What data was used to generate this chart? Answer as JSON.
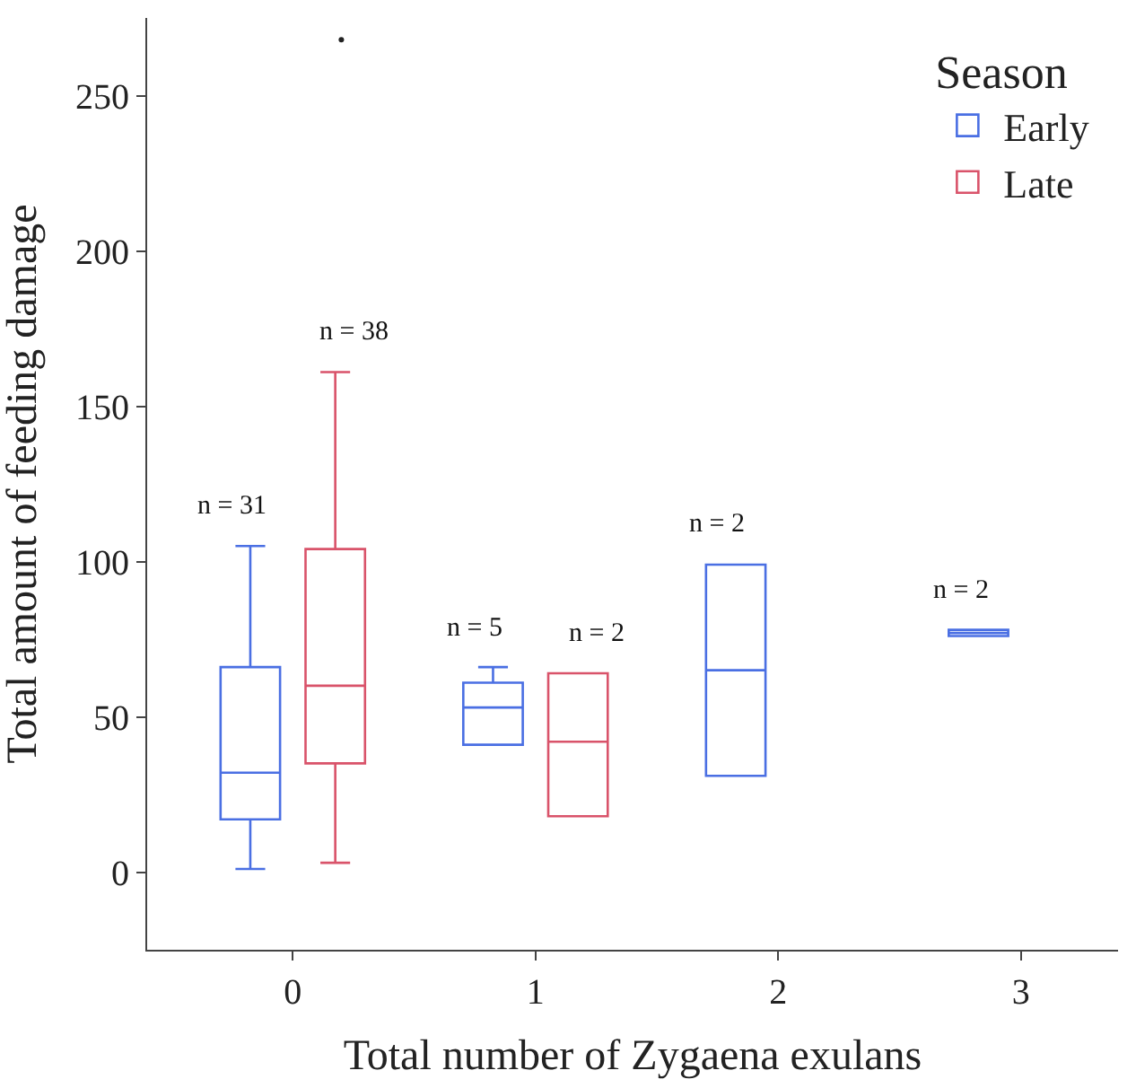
{
  "chart_data": {
    "type": "box",
    "xlabel": "Total number of Zygaena exulans",
    "ylabel": "Total amount of feeding damage",
    "legend_title": "Season",
    "legend": "top right",
    "categories": [
      "0",
      "1",
      "2",
      "3"
    ],
    "ylim": [
      -25,
      275
    ],
    "yticks": [
      0,
      50,
      100,
      150,
      200,
      250
    ],
    "series": [
      {
        "name": "Early",
        "color": "#4a6fe3",
        "boxes": [
          {
            "low": 1,
            "q1": 17,
            "median": 32,
            "q3": 66,
            "high": 105
          },
          {
            "low": 41,
            "q1": 41,
            "median": 53,
            "q3": 61,
            "high": 66
          },
          {
            "low": 31,
            "q1": 31,
            "median": 65,
            "q3": 99,
            "high": 99
          },
          {
            "low": 76,
            "q1": 76,
            "median": 77,
            "q3": 78,
            "high": 78
          }
        ]
      },
      {
        "name": "Late",
        "color": "#d9536a",
        "boxes": [
          {
            "low": 3,
            "q1": 35,
            "median": 60,
            "q3": 104,
            "high": 161,
            "outliers": [
              268
            ]
          },
          {
            "low": 18,
            "q1": 18,
            "median": 42,
            "q3": 64,
            "high": 64
          },
          null,
          null
        ]
      }
    ],
    "annotations": [
      "n = 31",
      "n = 5",
      "n = 2",
      "n = 2",
      "n = 38",
      "n = 2"
    ]
  }
}
